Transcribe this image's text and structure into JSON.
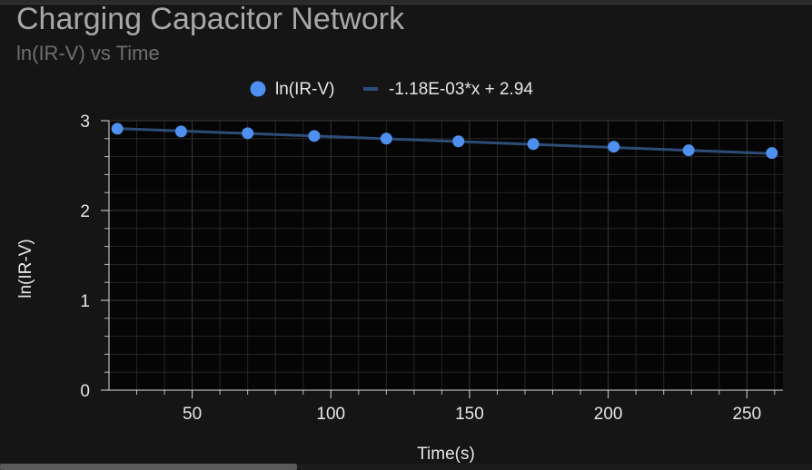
{
  "chart_data": {
    "type": "scatter",
    "title": "Charging Capacitor Network",
    "subtitle": "ln(IR-V) vs Time",
    "xlabel": "Time(s)",
    "ylabel": "ln(IR-V)",
    "xlim": [
      20,
      263
    ],
    "ylim": [
      0,
      3
    ],
    "xticks": [
      50,
      100,
      150,
      200,
      250
    ],
    "yticks": [
      0,
      1,
      2,
      3
    ],
    "grid": true,
    "legend_position": "top-center",
    "series": [
      {
        "name": "ln(IR-V)",
        "kind": "points",
        "color": "#4f8ff0",
        "x": [
          23,
          46,
          70,
          94,
          120,
          146,
          173,
          202,
          229,
          259
        ],
        "y": [
          2.91,
          2.88,
          2.86,
          2.83,
          2.8,
          2.77,
          2.74,
          2.71,
          2.67,
          2.64
        ]
      },
      {
        "name": "-1.18E-03*x + 2.94",
        "kind": "trendline",
        "color": "#2d4d77",
        "slope": -0.00118,
        "intercept": 2.94
      }
    ]
  },
  "colors": {
    "background": "#151515",
    "plot_background": "#050505",
    "grid": "#3a3a3a",
    "axis_text": "#e6e6e6"
  }
}
